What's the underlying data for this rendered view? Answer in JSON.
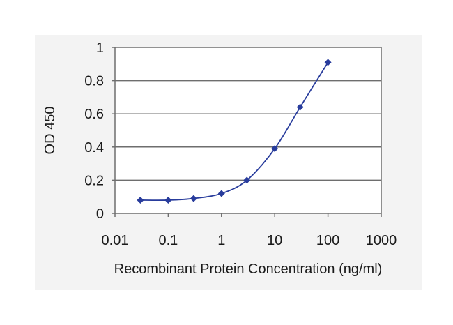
{
  "colors": {
    "background": "#ffffff",
    "outer_panel": "#f3f3f3",
    "plot_background": "#ffffff",
    "grid": "#6e6e6e",
    "series": "#283c9c",
    "text": "#1a1a1a"
  },
  "chart_data": {
    "type": "line",
    "title": "",
    "xlabel": "Recombinant Protein Concentration (ng/ml)",
    "ylabel": "OD 450",
    "x_scale": "log",
    "xlim": [
      0.01,
      1000
    ],
    "ylim": [
      0,
      1
    ],
    "x_ticks": [
      0.01,
      0.1,
      1,
      10,
      100,
      1000
    ],
    "x_tick_labels": [
      "0.01",
      "0.1",
      "1",
      "10",
      "100",
      "1000"
    ],
    "y_ticks": [
      0,
      0.2,
      0.4,
      0.6,
      0.8,
      1
    ],
    "y_tick_labels": [
      "0",
      "0.2",
      "0.4",
      "0.6",
      "0.8",
      "1"
    ],
    "grid": "horizontal",
    "legend": "none",
    "marker": "diamond",
    "series": [
      {
        "x": [
          0.03,
          0.1,
          0.3,
          1,
          3,
          10,
          30,
          100
        ],
        "y": [
          0.08,
          0.08,
          0.09,
          0.12,
          0.2,
          0.39,
          0.64,
          0.91
        ]
      }
    ]
  }
}
